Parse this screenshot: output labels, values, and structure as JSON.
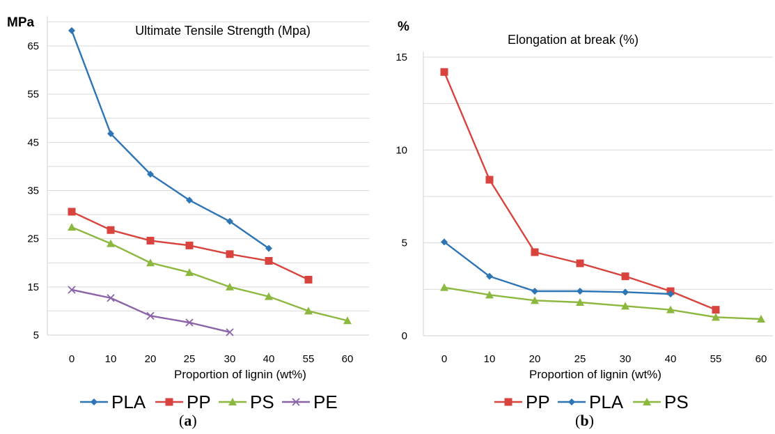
{
  "chart_data": [
    {
      "type": "line",
      "panel_label": "a",
      "title": "Ultimate Tensile Strength (Mpa)",
      "xlabel": "Proportion of lignin (wt%)",
      "ylabel": "MPa",
      "categories": [
        "0",
        "10",
        "20",
        "25",
        "30",
        "40",
        "55",
        "60"
      ],
      "yticks": [
        5,
        15,
        25,
        35,
        45,
        55,
        65
      ],
      "ylim": [
        5,
        70
      ],
      "grid": "horizontal",
      "legend_position": "bottom",
      "series": [
        {
          "name": "PLA",
          "color": "#2e75b6",
          "marker": "diamond",
          "values": [
            68.2,
            46.8,
            38.4,
            33.0,
            28.6,
            23.0,
            null,
            null
          ]
        },
        {
          "name": "PP",
          "color": "#d9433e",
          "marker": "square",
          "values": [
            30.6,
            26.8,
            24.6,
            23.6,
            21.8,
            20.4,
            16.5,
            null
          ]
        },
        {
          "name": "PS",
          "color": "#8db83f",
          "marker": "triangle",
          "values": [
            27.4,
            24.0,
            20.0,
            18.0,
            15.0,
            13.0,
            10.0,
            8.0
          ]
        },
        {
          "name": "PE",
          "color": "#8a63a8",
          "marker": "x",
          "values": [
            14.4,
            12.7,
            9.0,
            7.6,
            5.6,
            null,
            null,
            null
          ]
        }
      ]
    },
    {
      "type": "line",
      "panel_label": "b",
      "title": "Elongation at break (%)",
      "xlabel": "Proportion of lignin (wt%)",
      "ylabel": "%",
      "categories": [
        "0",
        "10",
        "20",
        "25",
        "30",
        "40",
        "55",
        "60"
      ],
      "yticks": [
        0,
        5,
        10,
        15
      ],
      "ylim": [
        0,
        15
      ],
      "grid": "horizontal",
      "legend_position": "bottom",
      "series": [
        {
          "name": "PP",
          "color": "#d9433e",
          "marker": "square",
          "values": [
            14.2,
            8.4,
            4.5,
            3.9,
            3.2,
            2.4,
            1.4,
            null
          ]
        },
        {
          "name": "PLA",
          "color": "#2e75b6",
          "marker": "diamond",
          "values": [
            5.05,
            3.2,
            2.4,
            2.4,
            2.35,
            2.25,
            null,
            null
          ]
        },
        {
          "name": "PS",
          "color": "#8db83f",
          "marker": "triangle",
          "values": [
            2.6,
            2.2,
            1.9,
            1.8,
            1.6,
            1.4,
            1.0,
            0.9
          ]
        }
      ]
    }
  ]
}
